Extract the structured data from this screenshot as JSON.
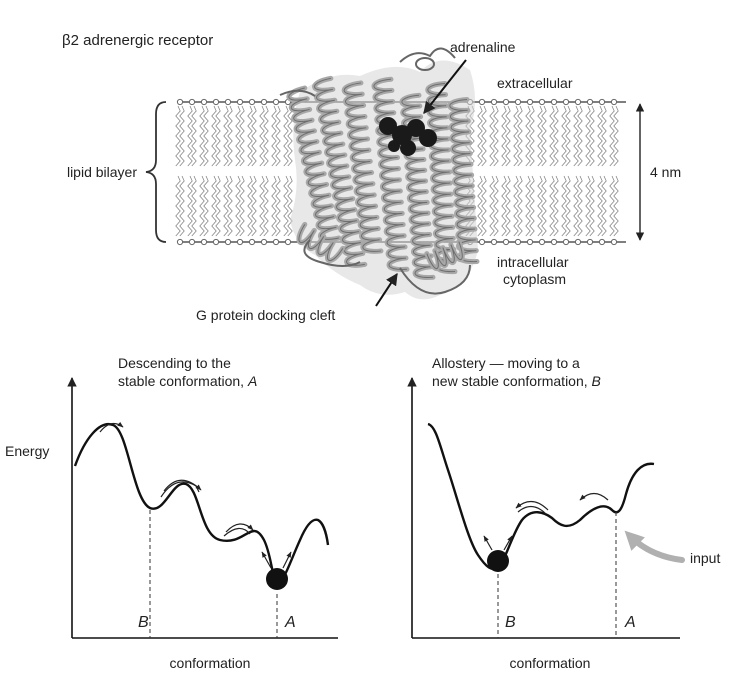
{
  "membrane": {
    "title": "β2 adrenergic receptor",
    "adrenaline": "adrenaline",
    "extracellular": "extracellular",
    "lipid_bilayer": "lipid bilayer",
    "thickness": "4 nm",
    "intracellular_line1": "intracellular",
    "intracellular_line2": "cytoplasm",
    "docking_cleft": "G protein docking cleft"
  },
  "left_panel": {
    "title_line1": "Descending to the",
    "title_line2_prefix": "stable conformation, ",
    "title_line2_italic": "A",
    "ylabel": "Energy",
    "xlabel": "conformation",
    "marker_b": "B",
    "marker_a": "A"
  },
  "right_panel": {
    "title_line1": "Allostery — moving to a",
    "title_line2_prefix": "new stable conformation, ",
    "title_line2_italic": "B",
    "input_label": "input",
    "xlabel": "conformation",
    "marker_b": "B",
    "marker_a": "A"
  },
  "colors": {
    "protein": "#a8a8a8",
    "protein_edge": "#555555",
    "ligand": "#1a1a1a",
    "input_arrow": "#b0b0b0",
    "curve": "#111111"
  }
}
